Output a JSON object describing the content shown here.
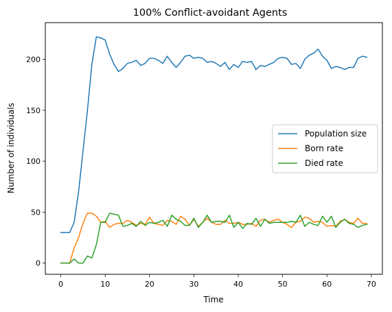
{
  "chart_data": {
    "type": "line",
    "title": "100% Conflict-avoidant Agents",
    "xlabel": "Time",
    "ylabel": "Number of individuals",
    "xlim": [
      -3.5,
      72.5
    ],
    "ylim": [
      -11,
      236
    ],
    "xticks": [
      0,
      10,
      20,
      30,
      40,
      50,
      60,
      70
    ],
    "yticks": [
      0,
      50,
      100,
      150,
      200
    ],
    "grid": false,
    "legend": "center-right",
    "series": [
      {
        "name": "Population size",
        "color": "#1f77b4",
        "x": [
          0,
          1,
          2,
          3,
          4,
          5,
          6,
          7,
          8,
          9,
          10,
          11,
          12,
          13,
          14,
          15,
          16,
          17,
          18,
          19,
          20,
          21,
          22,
          23,
          24,
          25,
          26,
          27,
          28,
          29,
          30,
          31,
          32,
          33,
          34,
          35,
          36,
          37,
          38,
          39,
          40,
          41,
          42,
          43,
          44,
          45,
          46,
          47,
          48,
          49,
          50,
          51,
          52,
          53,
          54,
          55,
          56,
          57,
          58,
          59,
          60,
          61,
          62,
          63,
          64,
          65,
          66,
          67,
          68,
          69
        ],
        "values": [
          30,
          30,
          30,
          40,
          70,
          110,
          150,
          195,
          222,
          221,
          219,
          205,
          195,
          188,
          191,
          196,
          197,
          199,
          194,
          196,
          201,
          201,
          199,
          196,
          203,
          197,
          192,
          197,
          203,
          204,
          201,
          202,
          201,
          197,
          198,
          196,
          193,
          197,
          190,
          195,
          192,
          198,
          197,
          198,
          190,
          194,
          193,
          195,
          197,
          201,
          202,
          201,
          195,
          196,
          191,
          200,
          204,
          206,
          210,
          203,
          199,
          191,
          193,
          192,
          190,
          192,
          192,
          201,
          203,
          202
        ]
      },
      {
        "name": "Born rate",
        "color": "#ff7f0e",
        "x": [
          0,
          1,
          2,
          3,
          4,
          5,
          6,
          7,
          8,
          9,
          10,
          11,
          12,
          13,
          14,
          15,
          16,
          17,
          18,
          19,
          20,
          21,
          22,
          23,
          24,
          25,
          26,
          27,
          28,
          29,
          30,
          31,
          32,
          33,
          34,
          35,
          36,
          37,
          38,
          39,
          40,
          41,
          42,
          43,
          44,
          45,
          46,
          47,
          48,
          49,
          50,
          51,
          52,
          53,
          54,
          55,
          56,
          57,
          58,
          59,
          60,
          61,
          62,
          63,
          64,
          65,
          66,
          67,
          68,
          69
        ],
        "values": [
          0,
          0,
          0,
          15,
          25,
          39,
          49,
          49,
          46,
          40,
          41,
          35,
          38,
          39,
          39,
          42,
          40,
          37,
          39,
          38,
          45,
          39,
          38,
          37,
          42,
          41,
          38,
          46,
          43,
          37,
          43,
          36,
          40,
          44,
          40,
          38,
          38,
          42,
          39,
          39,
          40,
          38,
          38,
          39,
          36,
          42,
          43,
          40,
          42,
          43,
          40,
          38,
          35,
          40,
          41,
          45,
          44,
          40,
          41,
          40,
          36,
          37,
          36,
          41,
          43,
          40,
          39,
          44,
          39,
          39
        ]
      },
      {
        "name": "Died rate",
        "color": "#2ca02c",
        "x": [
          0,
          1,
          2,
          3,
          4,
          5,
          6,
          7,
          8,
          9,
          10,
          11,
          12,
          13,
          14,
          15,
          16,
          17,
          18,
          19,
          20,
          21,
          22,
          23,
          24,
          25,
          26,
          27,
          28,
          29,
          30,
          31,
          32,
          33,
          34,
          35,
          36,
          37,
          38,
          39,
          40,
          41,
          42,
          43,
          44,
          45,
          46,
          47,
          48,
          49,
          50,
          51,
          52,
          53,
          54,
          55,
          56,
          57,
          58,
          59,
          60,
          61,
          62,
          63,
          64,
          65,
          66,
          67,
          68,
          69
        ],
        "values": [
          0,
          0,
          0,
          4,
          0,
          0,
          7,
          5,
          18,
          40,
          40,
          49,
          48,
          47,
          36,
          37,
          39,
          36,
          41,
          37,
          40,
          39,
          40,
          42,
          36,
          47,
          43,
          41,
          37,
          37,
          44,
          35,
          40,
          47,
          40,
          41,
          41,
          40,
          47,
          35,
          40,
          34,
          39,
          38,
          44,
          36,
          43,
          39,
          40,
          40,
          40,
          40,
          41,
          40,
          47,
          36,
          40,
          38,
          37,
          46,
          40,
          46,
          35,
          40,
          43,
          39,
          38,
          35,
          37,
          38
        ]
      }
    ]
  }
}
